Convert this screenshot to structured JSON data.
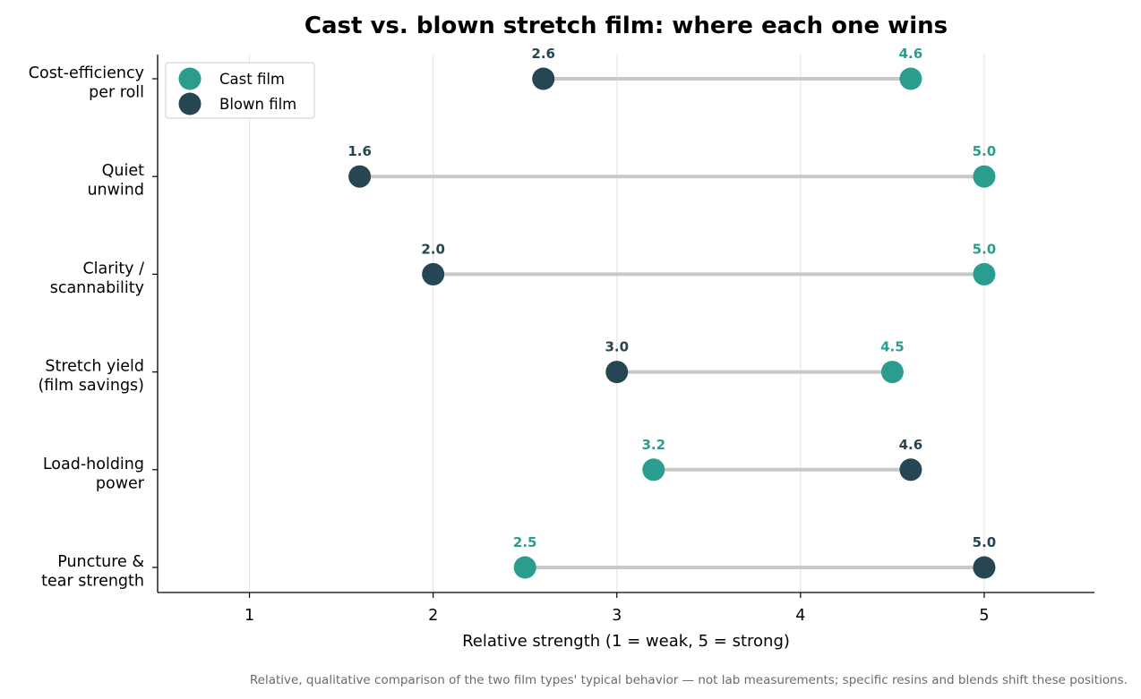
{
  "chart_data": {
    "type": "dumbbell",
    "title": "Cast vs. blown stretch film: where each one wins",
    "xlabel": "Relative strength (1 = weak, 5 = strong)",
    "xlim": [
      0.5,
      5.6
    ],
    "xticks": [
      1,
      2,
      3,
      4,
      5
    ],
    "grid": "vertical",
    "legend_position": "top-left",
    "categories": [
      "Cost-efficiency\nper roll",
      "Quiet\nunwind",
      "Clarity /\nscannability",
      "Stretch yield\n(film savings)",
      "Load-holding\npower",
      "Puncture &\ntear strength"
    ],
    "series": [
      {
        "name": "Cast film",
        "color": "#2a9d8f",
        "values": [
          4.6,
          5.0,
          5.0,
          4.5,
          3.2,
          2.5
        ]
      },
      {
        "name": "Blown film",
        "color": "#264653",
        "values": [
          2.6,
          1.6,
          2.0,
          3.0,
          4.6,
          5.0
        ]
      }
    ],
    "value_labels": [
      {
        "cast": "4.6",
        "blown": "2.6"
      },
      {
        "cast": "5.0",
        "blown": "1.6"
      },
      {
        "cast": "5.0",
        "blown": "2.0"
      },
      {
        "cast": "4.5",
        "blown": "3.0"
      },
      {
        "cast": "3.2",
        "blown": "4.6"
      },
      {
        "cast": "2.5",
        "blown": "5.0"
      }
    ],
    "connector_color": "#c8c8c8",
    "footnote": "Relative, qualitative comparison of the two film types' typical behavior — not lab measurements; specific resins and blends shift these positions."
  }
}
